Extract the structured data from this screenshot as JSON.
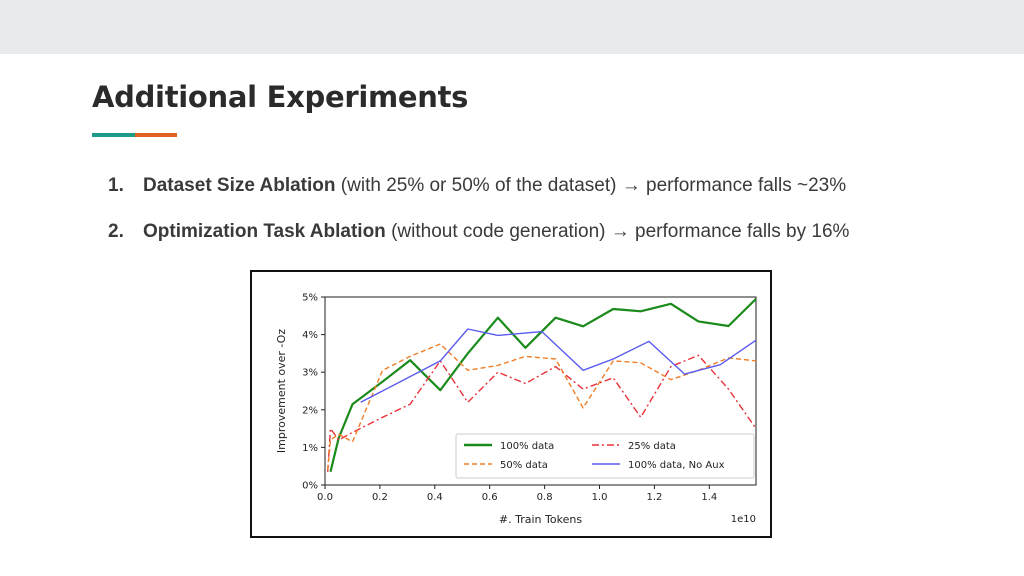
{
  "slide": {
    "title": "Additional Experiments",
    "accent_colors": [
      "#1e9a8a",
      "#e0621e"
    ],
    "bullets": [
      {
        "number": "1.",
        "bold": "Dataset Size Ablation",
        "rest": " (with 25% or 50% of the dataset) → performance falls ~23%"
      },
      {
        "number": "2.",
        "bold": "Optimization Task Ablation",
        "rest": " (without code generation) → performance falls by 16%"
      }
    ]
  },
  "chart_data": {
    "type": "line",
    "xlabel": "#. Train Tokens",
    "ylabel": "Improvement over -Oz",
    "x_multiplier": "1e10",
    "xlim": [
      0,
      1.57
    ],
    "ylim": [
      0,
      5
    ],
    "xticks": [
      0.0,
      0.2,
      0.4,
      0.6,
      0.8,
      1.0,
      1.2,
      1.4
    ],
    "xtick_labels": [
      "0.0",
      "0.2",
      "0.4",
      "0.6",
      "0.8",
      "1.0",
      "1.2",
      "1.4"
    ],
    "yticks": [
      0,
      1,
      2,
      3,
      4,
      5
    ],
    "ytick_labels": [
      "0%",
      "1%",
      "2%",
      "3%",
      "4%",
      "5%"
    ],
    "grid": false,
    "legend_position": "lower-right",
    "series": [
      {
        "name": "100% data",
        "color": "#1a8a1a",
        "dash": "solid",
        "x": [
          0.02,
          0.05,
          0.1,
          0.21,
          0.31,
          0.42,
          0.52,
          0.63,
          0.73,
          0.84,
          0.94,
          1.05,
          1.15,
          1.26,
          1.36,
          1.47,
          1.57
        ],
        "y": [
          0.35,
          1.25,
          2.15,
          2.75,
          3.32,
          2.52,
          3.5,
          4.45,
          3.65,
          4.45,
          4.22,
          4.68,
          4.62,
          4.82,
          4.35,
          4.23,
          4.95
        ]
      },
      {
        "name": "25% data",
        "color": "#e8323a",
        "dash": "dashdot",
        "x": [
          0.01,
          0.02,
          0.05,
          0.1,
          0.21,
          0.31,
          0.42,
          0.52,
          0.63,
          0.73,
          0.84,
          0.94,
          1.05,
          1.15,
          1.26,
          1.36,
          1.47,
          1.57
        ],
        "y": [
          0.35,
          1.5,
          1.2,
          1.4,
          1.8,
          2.15,
          3.3,
          2.2,
          3.0,
          2.7,
          3.15,
          2.55,
          2.85,
          1.8,
          3.15,
          3.45,
          2.55,
          1.5
        ]
      },
      {
        "name": "50% data",
        "color": "#f07e28",
        "dash": "dashed",
        "x": [
          0.01,
          0.02,
          0.05,
          0.1,
          0.21,
          0.31,
          0.42,
          0.52,
          0.63,
          0.73,
          0.84,
          0.94,
          1.05,
          1.15,
          1.26,
          1.36,
          1.47,
          1.57
        ],
        "y": [
          0.4,
          1.2,
          1.35,
          1.15,
          3.05,
          3.42,
          3.75,
          3.05,
          3.18,
          3.42,
          3.35,
          2.05,
          3.3,
          3.25,
          2.8,
          3.05,
          3.38,
          3.3
        ]
      },
      {
        "name": "100% data, No Aux",
        "color": "#5a5af0",
        "dash": "solid",
        "x": [
          0.13,
          0.42,
          0.52,
          0.63,
          0.79,
          0.94,
          1.05,
          1.18,
          1.31,
          1.44,
          1.57
        ],
        "y": [
          2.2,
          3.3,
          4.15,
          3.98,
          4.08,
          3.05,
          3.35,
          3.82,
          2.95,
          3.2,
          3.85
        ]
      }
    ]
  }
}
